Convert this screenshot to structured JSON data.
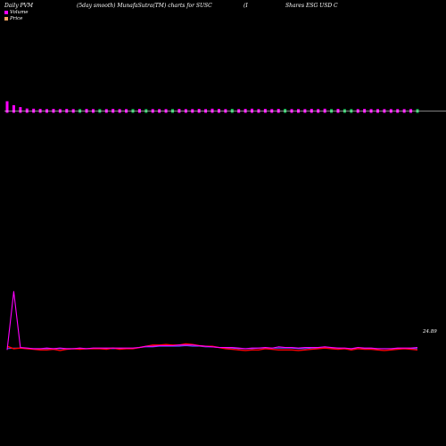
{
  "header": {
    "left": "Daily PVM",
    "middle": "(5day smooth) MunafaSutra(TM) charts for SUSC",
    "right_a": "(I",
    "right_b": "Shares ESG USD C"
  },
  "legend": {
    "volume": "Volume",
    "price": "Price"
  },
  "colors": {
    "background": "#000000",
    "volume_up": "#22c55e",
    "volume_down": "#ff00ff",
    "price_line": "#ff0000",
    "pvm_line": "#ff00ff",
    "aux_line": "#5555ff",
    "baseline": "#ffffff",
    "legend_volume": "#ff00ff",
    "legend_price": "#f4a460"
  },
  "chart_data": {
    "type": "bar",
    "end_label": "24.89",
    "volume": {
      "values": [
        5,
        3,
        2,
        1.3,
        1.2,
        1.1,
        1.0,
        1.1,
        1.0,
        1.1,
        1.0,
        1.0,
        1.1,
        1.0,
        1.0,
        1.0,
        1.1,
        1.0,
        1.0,
        1.0,
        1.1,
        1.0,
        1.0,
        1.0,
        1.0,
        1.0,
        1.1,
        1.0,
        1.0,
        1.1,
        1.0,
        1.2,
        1.1,
        1.0,
        1.1,
        1.0,
        1.1,
        1.2,
        1.0,
        1.1,
        1.0,
        1.1,
        1.1,
        1.0,
        1.0,
        1.0,
        1.1,
        1.0,
        1.2,
        1.0,
        1.1,
        1.0,
        1.0,
        1.0,
        1.1,
        1.0,
        1.0,
        1.0,
        1.0,
        1.0,
        1.0,
        1.0,
        1.0
      ],
      "up": [
        false,
        false,
        false,
        false,
        false,
        false,
        false,
        false,
        false,
        false,
        false,
        true,
        false,
        false,
        true,
        false,
        false,
        false,
        false,
        true,
        false,
        true,
        false,
        false,
        false,
        true,
        false,
        false,
        false,
        false,
        false,
        false,
        false,
        false,
        true,
        false,
        false,
        false,
        false,
        false,
        false,
        false,
        true,
        false,
        false,
        false,
        false,
        false,
        false,
        true,
        false,
        true,
        true,
        false,
        false,
        false,
        false,
        false,
        false,
        false,
        false,
        false,
        true
      ]
    },
    "price": [
      24.9,
      24.86,
      24.87,
      24.86,
      24.85,
      24.84,
      24.84,
      24.85,
      24.83,
      24.85,
      24.86,
      24.85,
      24.86,
      24.86,
      24.86,
      24.85,
      24.87,
      24.85,
      24.86,
      24.86,
      24.88,
      24.9,
      24.92,
      24.92,
      24.93,
      24.92,
      24.92,
      24.94,
      24.93,
      24.91,
      24.9,
      24.9,
      24.88,
      24.86,
      24.85,
      24.84,
      24.83,
      24.84,
      24.84,
      24.86,
      24.85,
      24.84,
      24.84,
      24.84,
      24.83,
      24.84,
      24.85,
      24.86,
      24.87,
      24.86,
      24.85,
      24.86,
      24.84,
      24.86,
      24.85,
      24.85,
      24.84,
      24.83,
      24.84,
      24.85,
      24.86,
      24.85,
      24.84
    ],
    "pvm": [
      24.84,
      25.8,
      24.88,
      24.87,
      24.86,
      24.86,
      24.87,
      24.86,
      24.87,
      24.86,
      24.86,
      24.87,
      24.86,
      24.87,
      24.87,
      24.87,
      24.87,
      24.87,
      24.87,
      24.87,
      24.88,
      24.9,
      24.9,
      24.91,
      24.91,
      24.91,
      24.92,
      24.92,
      24.92,
      24.91,
      24.9,
      24.89,
      24.88,
      24.88,
      24.88,
      24.87,
      24.86,
      24.87,
      24.87,
      24.88,
      24.87,
      24.89,
      24.88,
      24.88,
      24.87,
      24.88,
      24.88,
      24.88,
      24.89,
      24.88,
      24.87,
      24.87,
      24.86,
      24.88,
      24.87,
      24.87,
      24.86,
      24.86,
      24.86,
      24.87,
      24.87,
      24.87,
      24.88
    ],
    "aux": [
      24.86,
      24.87,
      24.87,
      24.86,
      24.86,
      24.86,
      24.86,
      24.86,
      24.86,
      24.86,
      24.86,
      24.86,
      24.86,
      24.86,
      24.86,
      24.86,
      24.86,
      24.86,
      24.86,
      24.86,
      24.88,
      24.89,
      24.89,
      24.9,
      24.9,
      24.9,
      24.9,
      24.91,
      24.9,
      24.9,
      24.89,
      24.89,
      24.88,
      24.87,
      24.87,
      24.86,
      24.86,
      24.86,
      24.87,
      24.87,
      24.87,
      24.87,
      24.87,
      24.87,
      24.86,
      24.86,
      24.87,
      24.87,
      24.87,
      24.87,
      24.87,
      24.86,
      24.86,
      24.86,
      24.86,
      24.86,
      24.86,
      24.86,
      24.86,
      24.86,
      24.86,
      24.86,
      24.86
    ],
    "ylim": [
      24.8,
      25.9
    ]
  }
}
